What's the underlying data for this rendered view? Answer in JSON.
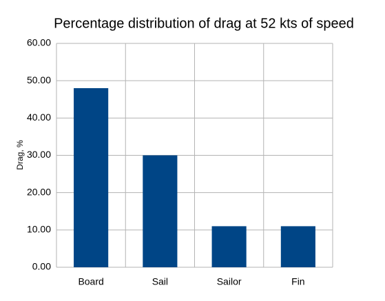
{
  "chart_data": {
    "type": "bar",
    "title": "Percentage distribution of drag at 52 kts of speed",
    "y_label": "Drag, %",
    "categories": [
      "Board",
      "Sail",
      "Sailor",
      "Fin"
    ],
    "values": [
      48,
      30,
      11,
      11
    ],
    "color": "#004586",
    "ylim": [
      0,
      60
    ],
    "yticks": [
      {
        "value": 0,
        "label": "0.00"
      },
      {
        "value": 10,
        "label": "10.00"
      },
      {
        "value": 20,
        "label": "20.00"
      },
      {
        "value": 30,
        "label": "30.00"
      },
      {
        "value": 40,
        "label": "40.00"
      },
      {
        "value": 50,
        "label": "50.00"
      },
      {
        "value": 60,
        "label": "60.00"
      }
    ],
    "grid": true
  }
}
